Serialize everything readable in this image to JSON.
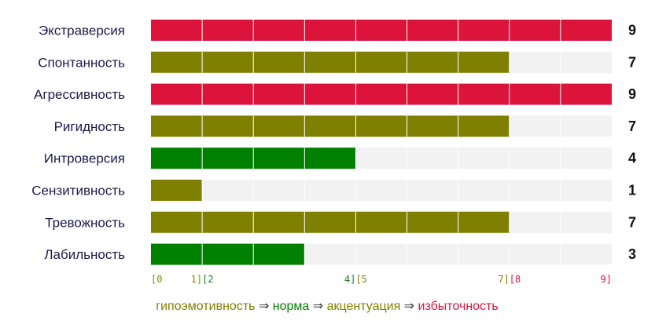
{
  "chart_data": {
    "type": "bar",
    "orientation": "horizontal",
    "categories": [
      "Экстраверсия",
      "Спонтанность",
      "Агрессивность",
      "Ригидность",
      "Интроверсия",
      "Сензитивность",
      "Тревожность",
      "Лабильность"
    ],
    "values": [
      9,
      7,
      9,
      7,
      4,
      1,
      7,
      3
    ],
    "xlim": [
      0,
      9
    ],
    "segments_per_bar": 9,
    "range_labels": [
      {
        "text": "[0",
        "at": 0,
        "anchor": "start",
        "color": "#888800"
      },
      {
        "text": "1]",
        "at": 1,
        "anchor": "end",
        "color": "#888800"
      },
      {
        "text": "[2",
        "at": 1,
        "anchor": "start",
        "color": "#1b7f1b"
      },
      {
        "text": "4]",
        "at": 4,
        "anchor": "end",
        "color": "#1b7f1b"
      },
      {
        "text": "[5",
        "at": 4,
        "anchor": "start",
        "color": "#7f7f00"
      },
      {
        "text": "7]",
        "at": 7,
        "anchor": "end",
        "color": "#7f7f00"
      },
      {
        "text": "[8",
        "at": 7,
        "anchor": "start",
        "color": "#dc143c"
      },
      {
        "text": "9]",
        "at": 9,
        "anchor": "end",
        "color": "#dc143c"
      }
    ],
    "zones": [
      {
        "name": "гипоэмотивность",
        "min": 0,
        "max": 1,
        "color": "#808000"
      },
      {
        "name": "норма",
        "min": 2,
        "max": 4,
        "color": "#008000"
      },
      {
        "name": "акцентуация",
        "min": 5,
        "max": 7,
        "color": "#808000"
      },
      {
        "name": "избыточность",
        "min": 8,
        "max": 9,
        "color": "#dc143c"
      }
    ],
    "track_color": "#f2f2f2",
    "legend": {
      "arrow": "⇒",
      "items": [
        {
          "label": "гипоэмотивность",
          "color": "#808000"
        },
        {
          "label": "норма",
          "color": "#008000"
        },
        {
          "label": "акцентуация",
          "color": "#808000"
        },
        {
          "label": "избыточность",
          "color": "#dc143c"
        }
      ]
    }
  }
}
